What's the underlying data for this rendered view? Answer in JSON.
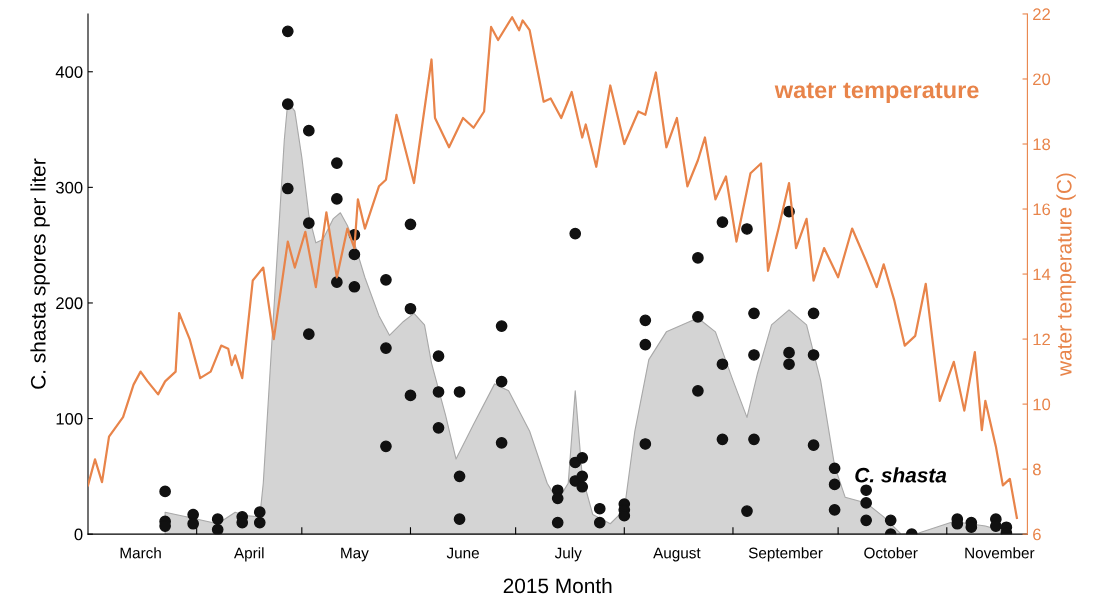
{
  "chart_data": {
    "type": "area",
    "xlabel": "2015 Month",
    "ylabel": "C. shasta spores per liter",
    "y2label": "water temperature (C)",
    "xlim": [
      "2015-03-01",
      "2015-11-24"
    ],
    "xticks": [
      {
        "value": "2015-04-01",
        "label": null
      },
      {
        "value": "2015-05-01",
        "label": null
      },
      {
        "value": "2015-06-01",
        "label": null
      },
      {
        "value": "2015-07-01",
        "label": null
      },
      {
        "value": "2015-08-01",
        "label": null
      },
      {
        "value": "2015-09-01",
        "label": null
      },
      {
        "value": "2015-10-01",
        "label": null
      },
      {
        "value": "2015-11-01",
        "label": null
      },
      {
        "value": "2015-03-16",
        "label": "March"
      },
      {
        "value": "2015-04-16",
        "label": "April"
      },
      {
        "value": "2015-05-16",
        "label": "May"
      },
      {
        "value": "2015-06-16",
        "label": "June"
      },
      {
        "value": "2015-07-16",
        "label": "July"
      },
      {
        "value": "2015-08-16",
        "label": "August"
      },
      {
        "value": "2015-09-16",
        "label": "September"
      },
      {
        "value": "2015-10-16",
        "label": "October"
      },
      {
        "value": "2015-11-16",
        "label": "November"
      }
    ],
    "ylim": [
      0,
      450
    ],
    "yticks": [
      0,
      100,
      200,
      300,
      400
    ],
    "y2lim": [
      6,
      22
    ],
    "y2ticks": [
      6,
      8,
      10,
      12,
      14,
      16,
      18,
      20,
      22
    ],
    "grid": false,
    "legend": false,
    "series": [
      {
        "name": "C. shasta",
        "color": "#d4d4d4",
        "x": [
          "2015-03-23",
          "2015-03-29",
          "2015-04-07",
          "2015-04-12",
          "2015-04-15",
          "2015-04-19",
          "2015-04-20",
          "2015-04-23",
          "2015-04-26",
          "2015-04-27",
          "2015-04-29",
          "2015-05-01",
          "2015-05-03",
          "2015-05-05",
          "2015-05-07",
          "2015-05-10",
          "2015-05-12",
          "2015-05-14",
          "2015-05-16",
          "2015-05-19",
          "2015-05-23",
          "2015-05-26",
          "2015-05-30",
          "2015-06-02",
          "2015-06-05",
          "2015-06-07",
          "2015-06-11",
          "2015-06-14",
          "2015-06-19",
          "2015-06-25",
          "2015-06-29",
          "2015-07-05",
          "2015-07-10",
          "2015-07-13",
          "2015-07-16",
          "2015-07-18",
          "2015-07-20",
          "2015-07-23",
          "2015-07-28",
          "2015-08-01",
          "2015-08-04",
          "2015-08-08",
          "2015-08-13",
          "2015-08-22",
          "2015-08-27",
          "2015-09-01",
          "2015-09-05",
          "2015-09-08",
          "2015-09-12",
          "2015-09-17",
          "2015-09-22",
          "2015-09-26",
          "2015-09-30",
          "2015-10-03",
          "2015-10-09",
          "2015-10-14",
          "2015-10-19",
          "2015-10-24",
          "2015-11-03",
          "2015-11-12",
          "2015-11-19"
        ],
        "values": [
          19,
          15,
          9,
          19,
          16,
          15,
          44,
          193,
          341,
          374,
          366,
          326,
          276,
          252,
          255,
          273,
          278,
          267,
          252,
          222,
          189,
          172,
          184,
          191,
          181,
          148,
          103,
          65,
          95,
          130,
          124,
          89,
          44,
          29,
          44,
          124,
          50,
          17,
          9,
          21,
          89,
          151,
          175,
          187,
          175,
          133,
          101,
          139,
          181,
          194,
          181,
          133,
          59,
          32,
          27,
          15,
          0,
          1,
          11,
          7,
          1
        ]
      },
      {
        "type": "scatter",
        "color": "#111111",
        "marker": "circle",
        "x": [
          "2015-03-23",
          "2015-03-23",
          "2015-03-23",
          "2015-03-31",
          "2015-03-31",
          "2015-04-07",
          "2015-04-07",
          "2015-04-14",
          "2015-04-14",
          "2015-04-19",
          "2015-04-19",
          "2015-04-27",
          "2015-04-27",
          "2015-04-27",
          "2015-05-03",
          "2015-05-03",
          "2015-05-03",
          "2015-05-11",
          "2015-05-11",
          "2015-05-11",
          "2015-05-16",
          "2015-05-16",
          "2015-05-16",
          "2015-05-25",
          "2015-05-25",
          "2015-05-25",
          "2015-06-01",
          "2015-06-01",
          "2015-06-01",
          "2015-06-09",
          "2015-06-09",
          "2015-06-09",
          "2015-06-15",
          "2015-06-15",
          "2015-06-15",
          "2015-06-27",
          "2015-06-27",
          "2015-06-27",
          "2015-07-13",
          "2015-07-13",
          "2015-07-13",
          "2015-07-18",
          "2015-07-18",
          "2015-07-18",
          "2015-07-20",
          "2015-07-20",
          "2015-07-20",
          "2015-07-25",
          "2015-07-25",
          "2015-08-01",
          "2015-08-01",
          "2015-08-01",
          "2015-08-07",
          "2015-08-07",
          "2015-08-07",
          "2015-08-22",
          "2015-08-22",
          "2015-08-22",
          "2015-08-29",
          "2015-08-29",
          "2015-08-29",
          "2015-09-05",
          "2015-09-05",
          "2015-09-07",
          "2015-09-07",
          "2015-09-07",
          "2015-09-17",
          "2015-09-17",
          "2015-09-17",
          "2015-09-24",
          "2015-09-24",
          "2015-09-24",
          "2015-09-30",
          "2015-09-30",
          "2015-09-30",
          "2015-10-09",
          "2015-10-09",
          "2015-10-09",
          "2015-10-16",
          "2015-10-16",
          "2015-10-22",
          "2015-11-04",
          "2015-11-04",
          "2015-11-08",
          "2015-11-08",
          "2015-11-15",
          "2015-11-15",
          "2015-11-18",
          "2015-11-18"
        ],
        "values": [
          37,
          11,
          7,
          17,
          9,
          13,
          4,
          15,
          10,
          19,
          10,
          435,
          372,
          299,
          349,
          269,
          173,
          321,
          290,
          218,
          259,
          242,
          214,
          220,
          161,
          76,
          268,
          195,
          120,
          154,
          123,
          92,
          123,
          50,
          13,
          180,
          132,
          79,
          38,
          31,
          10,
          260,
          62,
          46,
          66,
          50,
          41,
          22,
          10,
          26,
          21,
          16,
          185,
          164,
          78,
          239,
          188,
          124,
          270,
          147,
          82,
          264,
          20,
          191,
          155,
          82,
          279,
          157,
          147,
          191,
          155,
          77,
          57,
          43,
          21,
          38,
          27,
          12,
          12,
          0,
          0,
          13,
          9,
          10,
          6,
          13,
          7,
          6,
          1
        ]
      },
      {
        "type": "line",
        "name": "water temperature",
        "axis": "y2",
        "color": "#e8844a",
        "x": [
          "2015-03-01",
          "2015-03-03",
          "2015-03-05",
          "2015-03-07",
          "2015-03-11",
          "2015-03-14",
          "2015-03-16",
          "2015-03-18",
          "2015-03-21",
          "2015-03-23",
          "2015-03-26",
          "2015-03-27",
          "2015-03-30",
          "2015-04-02",
          "2015-04-05",
          "2015-04-08",
          "2015-04-10",
          "2015-04-11",
          "2015-04-12",
          "2015-04-14",
          "2015-04-17",
          "2015-04-20",
          "2015-04-23",
          "2015-04-27",
          "2015-04-29",
          "2015-05-02",
          "2015-05-05",
          "2015-05-08",
          "2015-05-11",
          "2015-05-14",
          "2015-05-16",
          "2015-05-17",
          "2015-05-19",
          "2015-05-23",
          "2015-05-25",
          "2015-05-28",
          "2015-06-02",
          "2015-06-07",
          "2015-06-08",
          "2015-06-12",
          "2015-06-16",
          "2015-06-19",
          "2015-06-22",
          "2015-06-24",
          "2015-06-26",
          "2015-06-30",
          "2015-07-02",
          "2015-07-03",
          "2015-07-05",
          "2015-07-07",
          "2015-07-09",
          "2015-07-11",
          "2015-07-14",
          "2015-07-17",
          "2015-07-20",
          "2015-07-21",
          "2015-07-24",
          "2015-07-28",
          "2015-08-01",
          "2015-08-05",
          "2015-08-07",
          "2015-08-10",
          "2015-08-13",
          "2015-08-16",
          "2015-08-19",
          "2015-08-22",
          "2015-08-24",
          "2015-08-27",
          "2015-08-30",
          "2015-09-02",
          "2015-09-06",
          "2015-09-09",
          "2015-09-11",
          "2015-09-14",
          "2015-09-17",
          "2015-09-19",
          "2015-09-22",
          "2015-09-24",
          "2015-09-27",
          "2015-10-01",
          "2015-10-05",
          "2015-10-09",
          "2015-10-12",
          "2015-10-14",
          "2015-10-17",
          "2015-10-20",
          "2015-10-23",
          "2015-10-26",
          "2015-10-30",
          "2015-11-02",
          "2015-11-03",
          "2015-11-06",
          "2015-11-09",
          "2015-11-11",
          "2015-11-12",
          "2015-11-15",
          "2015-11-17",
          "2015-11-19",
          "2015-11-21"
        ],
        "values": [
          7.5,
          8.3,
          7.6,
          9.0,
          9.6,
          10.6,
          11.0,
          10.7,
          10.3,
          10.7,
          11.0,
          12.8,
          12.0,
          10.8,
          11.0,
          11.8,
          11.7,
          11.2,
          11.5,
          10.8,
          13.8,
          14.2,
          12.0,
          15.0,
          14.2,
          15.3,
          13.6,
          15.9,
          13.9,
          15.4,
          14.8,
          16.3,
          15.4,
          16.7,
          16.9,
          18.9,
          16.8,
          20.6,
          18.8,
          17.9,
          18.8,
          18.5,
          19.0,
          21.6,
          21.2,
          21.9,
          21.5,
          21.8,
          21.5,
          20.4,
          19.3,
          19.4,
          18.8,
          19.6,
          18.2,
          18.6,
          17.3,
          19.8,
          18.0,
          19.0,
          18.9,
          20.2,
          17.9,
          18.8,
          16.7,
          17.5,
          18.2,
          16.3,
          17.0,
          15.0,
          17.1,
          17.4,
          14.1,
          15.4,
          16.8,
          14.8,
          15.7,
          13.8,
          14.8,
          13.9,
          15.4,
          14.4,
          13.6,
          14.3,
          13.2,
          11.8,
          12.1,
          13.7,
          10.1,
          11.0,
          11.3,
          9.8,
          11.6,
          9.2,
          10.1,
          8.7,
          7.5,
          7.7,
          6.5
        ]
      }
    ]
  }
}
